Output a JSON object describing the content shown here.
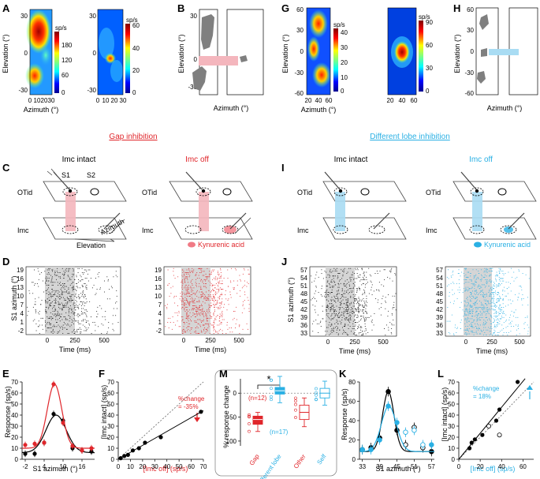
{
  "panel_letters": [
    "A",
    "B",
    "C",
    "D",
    "E",
    "F",
    "G",
    "H",
    "I",
    "J",
    "K",
    "L",
    "M"
  ],
  "colors": {
    "red": "#e0262b",
    "blue": "#2ab0e4",
    "gray": "#7f7f7f",
    "pink": "#f4b6bd",
    "lightblue": "#a9dcf3",
    "shade": "#d5d5d5"
  },
  "A": {
    "ylabel": "Elevation (°)",
    "xlabel": "Azimuth (°)",
    "yticks": [
      "30",
      "0",
      "-30"
    ],
    "xticks": [
      "0",
      "10",
      "20",
      "30"
    ],
    "xticks2": [
      "0",
      "10",
      "20",
      "30"
    ],
    "cbar1": {
      "unit": "sp/s",
      "ticks": [
        "180",
        "120",
        "60",
        "0"
      ]
    },
    "cbar2": {
      "unit": "sp/s",
      "ticks": [
        "60",
        "40",
        "20",
        "0"
      ]
    }
  },
  "B": {
    "ylabel": "Elevation (°)",
    "xlabel": "Azimuth (°)",
    "yticks": [
      "30",
      "0",
      "-30"
    ]
  },
  "G": {
    "ylabel": "Elevation (°)",
    "xlabel": "Azimuth (°)",
    "yticks": [
      "60",
      "30",
      "0",
      "-30",
      "-60"
    ],
    "xticks": [
      "20",
      "40",
      "60"
    ],
    "xticks2": [
      "20",
      "40",
      "60"
    ],
    "cbar1": {
      "unit": "sp/s",
      "ticks": [
        "40",
        "30",
        "20",
        "10",
        "0"
      ]
    },
    "cbar2": {
      "unit": "sp/s",
      "ticks": [
        "90",
        "60",
        "30",
        "0"
      ]
    }
  },
  "H": {
    "ylabel": "Elevation (°)",
    "xlabel": "Azimuth (°)",
    "yticks": [
      "60",
      "30",
      "0",
      "-30",
      "-60"
    ]
  },
  "headers": {
    "gap": "Gap inhibition",
    "diff": "Different lobe inhibition"
  },
  "C": {
    "left_title": "Imc intact",
    "right_title": "Imc off",
    "otid": "OTid",
    "imc": "Imc",
    "s1": "S1",
    "s2": "S2",
    "azimuth": "Azimuth",
    "elevation": "Elevation",
    "kyn": "Kynurenic acid"
  },
  "I": {
    "left_title": "Imc intact",
    "right_title": "Imc off",
    "otid": "OTid",
    "imc": "Imc",
    "kyn": "Kynurenic acid"
  },
  "D": {
    "ylabel": "S1 azimuth (°)",
    "xlabel": "Time (ms)",
    "yticks": [
      "19",
      "16",
      "13",
      "10",
      "7",
      "4",
      "1",
      "-2"
    ],
    "xticks": [
      "0",
      "250",
      "500"
    ]
  },
  "J": {
    "ylabel": "S1 azimuth (°)",
    "xlabel": "Time (ms)",
    "yticks": [
      "57",
      "54",
      "51",
      "48",
      "45",
      "42",
      "39",
      "36",
      "33"
    ],
    "xticks": [
      "0",
      "250",
      "500"
    ]
  },
  "E": {
    "ylabel": "Response (sp/s)",
    "xlabel": "S1 azimuth (°)",
    "yticks": [
      "0",
      "10",
      "20",
      "30",
      "40",
      "50",
      "60",
      "70"
    ],
    "xticks": [
      "-2",
      "4",
      "10",
      "16"
    ]
  },
  "F": {
    "ylabel": "[Imc intact] (sp/s)",
    "xlabel": "[Imc off] (sp/s)",
    "yticks": [
      "0",
      "10",
      "20",
      "30",
      "40",
      "50",
      "60",
      "70"
    ],
    "xticks": [
      "0",
      "10",
      "20",
      "30",
      "40",
      "50",
      "60",
      "70"
    ],
    "annotation": "%change\n= -35%"
  },
  "K": {
    "ylabel": "Response (sp/s)",
    "xlabel": "S1 azimuth (°)",
    "yticks": [
      "0",
      "20",
      "40",
      "60",
      "80"
    ],
    "xticks": [
      "33",
      "39",
      "45",
      "51",
      "57"
    ]
  },
  "L": {
    "ylabel": "[Imc intact] (sp/s)",
    "xlabel": "[Imc off] (sp/s)",
    "yticks": [
      "0",
      "10",
      "20",
      "30",
      "40",
      "50",
      "60",
      "70"
    ],
    "xticks": [
      "0",
      "20",
      "40",
      "60"
    ],
    "annotation": "%change\n= 18%"
  },
  "M": {
    "ylabel": "% response change",
    "yticks": [
      "0",
      "-50",
      "-100"
    ],
    "categories": [
      "Gap",
      "Different lobe",
      "Other",
      "Self"
    ],
    "n_gap": "(n=12)",
    "n_diff": "(n=17)",
    "star": "*"
  },
  "chart_data": [
    {
      "panel": "E",
      "type": "line",
      "title": "",
      "xlabel": "S1 azimuth (°)",
      "ylabel": "Response (sp/s)",
      "ylim": [
        0,
        70
      ],
      "xlim": [
        -3,
        20
      ],
      "series": [
        {
          "name": "Imc intact",
          "color": "black",
          "x": [
            -2,
            1,
            4,
            7,
            10,
            13,
            16,
            19
          ],
          "values": [
            5,
            5,
            15,
            41,
            35,
            10,
            8,
            7
          ]
        },
        {
          "name": "Imc off",
          "color": "red",
          "x": [
            -2,
            1,
            4,
            7,
            10,
            13,
            16,
            19
          ],
          "values": [
            13,
            14,
            15,
            68,
            33,
            12,
            8,
            10
          ]
        }
      ]
    },
    {
      "panel": "F",
      "type": "scatter",
      "xlabel": "[Imc off] (sp/s)",
      "ylabel": "[Imc intact] (sp/s)",
      "xlim": [
        0,
        70
      ],
      "ylim": [
        0,
        70
      ],
      "series": [
        {
          "name": "points",
          "x": [
            2,
            5,
            8,
            12,
            17,
            22,
            35,
            68
          ],
          "values": [
            1,
            3,
            4,
            8,
            10,
            15,
            20,
            43
          ]
        }
      ]
    },
    {
      "panel": "K",
      "type": "line",
      "xlabel": "S1 azimuth (°)",
      "ylabel": "Response (sp/s)",
      "ylim": [
        0,
        80
      ],
      "xlim": [
        32,
        58
      ],
      "series": [
        {
          "name": "Imc intact",
          "color": "black",
          "x": [
            33,
            36,
            39,
            42,
            45,
            48,
            51,
            54,
            57
          ],
          "values": [
            10,
            12,
            22,
            70,
            30,
            15,
            33,
            12,
            8
          ]
        },
        {
          "name": "Imc off",
          "color": "blue",
          "x": [
            33,
            36,
            39,
            42,
            45,
            48,
            51,
            54,
            57
          ],
          "values": [
            10,
            10,
            20,
            55,
            38,
            28,
            30,
            15,
            15
          ]
        }
      ]
    },
    {
      "panel": "L",
      "type": "scatter",
      "xlabel": "[Imc off] (sp/s)",
      "ylabel": "[Imc intact] (sp/s)",
      "xlim": [
        0,
        70
      ],
      "ylim": [
        0,
        70
      ],
      "series": [
        {
          "name": "filled",
          "x": [
            10,
            12,
            15,
            22,
            35,
            38,
            55
          ],
          "values": [
            10,
            15,
            18,
            22,
            35,
            45,
            70
          ]
        },
        {
          "name": "open",
          "x": [
            28,
            38
          ],
          "values": [
            30,
            22
          ]
        }
      ]
    },
    {
      "panel": "M",
      "type": "box",
      "categories": [
        "Gap",
        "Different lobe",
        "Other",
        "Self"
      ],
      "ylabel": "% response change",
      "ylim": [
        -110,
        30
      ],
      "series": [
        {
          "name": "Gap",
          "median": -55,
          "q1": -65,
          "q3": -48,
          "min": -80,
          "max": -40,
          "color": "red"
        },
        {
          "name": "Different lobe",
          "median": 5,
          "q1": -2,
          "q3": 12,
          "min": -20,
          "max": 35,
          "color": "blue"
        },
        {
          "name": "Other",
          "median": -40,
          "q1": -55,
          "q3": -25,
          "min": -70,
          "max": -10,
          "color": "red"
        },
        {
          "name": "Self",
          "median": 0,
          "q1": -10,
          "q3": 10,
          "min": -25,
          "max": 25,
          "color": "blue"
        }
      ]
    }
  ]
}
